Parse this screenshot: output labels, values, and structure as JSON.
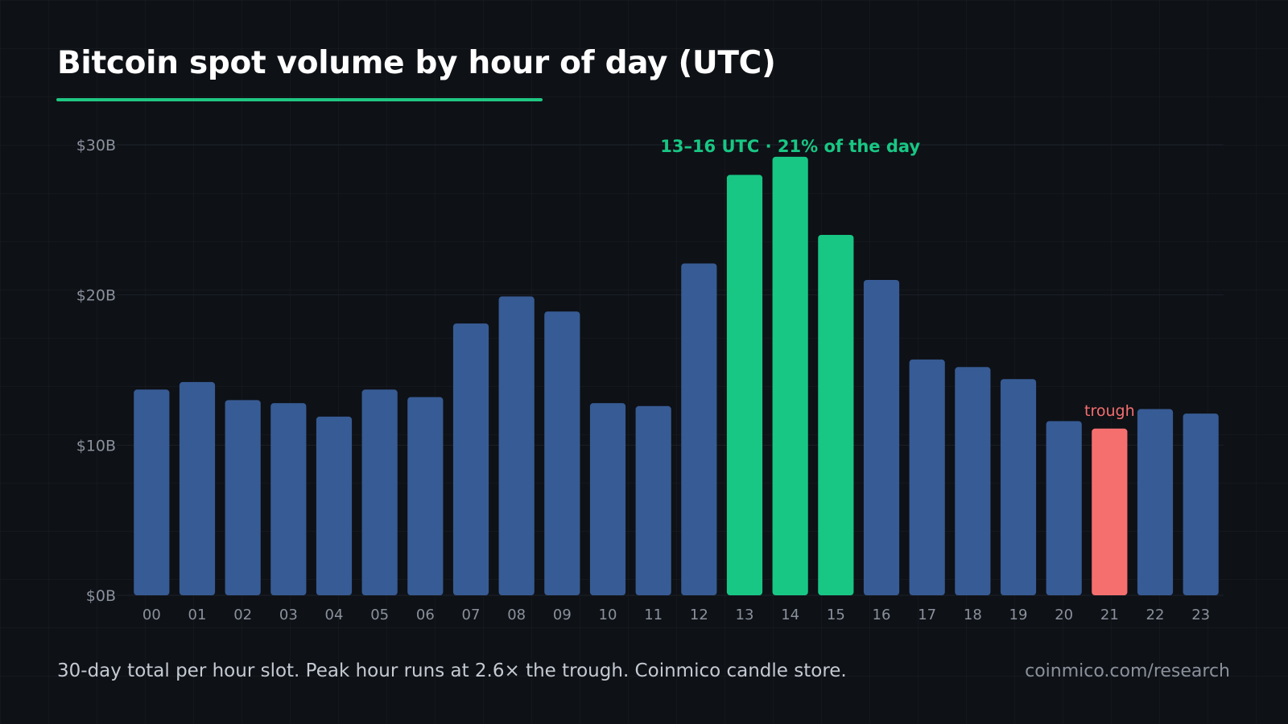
{
  "title": "Bitcoin spot volume by hour of day (UTC)",
  "footer": {
    "note": "30-day total per hour slot. Peak hour runs at 2.6× the trough. Coinmico candle store.",
    "source": "coinmico.com/research"
  },
  "colors": {
    "background": "#0e1116",
    "bar_default": "#375b94",
    "bar_peak": "#18c784",
    "bar_trough": "#f56f6f",
    "accent": "#1fc783",
    "gridline": "#1c2129",
    "tick_label": "#8a919c"
  },
  "chart_data": {
    "type": "bar",
    "categories": [
      "00",
      "01",
      "02",
      "03",
      "04",
      "05",
      "06",
      "07",
      "08",
      "09",
      "10",
      "11",
      "12",
      "13",
      "14",
      "15",
      "16",
      "17",
      "18",
      "19",
      "20",
      "21",
      "22",
      "23"
    ],
    "values": [
      13.7,
      14.2,
      13.0,
      12.8,
      11.9,
      13.7,
      13.2,
      18.1,
      19.9,
      18.9,
      12.8,
      12.6,
      22.1,
      28.0,
      29.2,
      24.0,
      21.0,
      15.7,
      15.2,
      14.4,
      11.6,
      11.1,
      12.4,
      12.1
    ],
    "unit": "USD billions",
    "ylim": [
      0,
      30
    ],
    "yticks": [
      {
        "value": 0,
        "label": "$0B"
      },
      {
        "value": 10,
        "label": "$10B"
      },
      {
        "value": 20,
        "label": "$20B"
      },
      {
        "value": 30,
        "label": "$30B"
      }
    ],
    "grid": true,
    "highlight": {
      "peak_categories": [
        "13",
        "14",
        "15"
      ],
      "trough_category": "21"
    },
    "annotations": [
      {
        "text": "13–16 UTC · 21% of the day",
        "category": "14",
        "kind": "peak"
      },
      {
        "text": "trough",
        "category": "21",
        "kind": "trough"
      }
    ]
  }
}
